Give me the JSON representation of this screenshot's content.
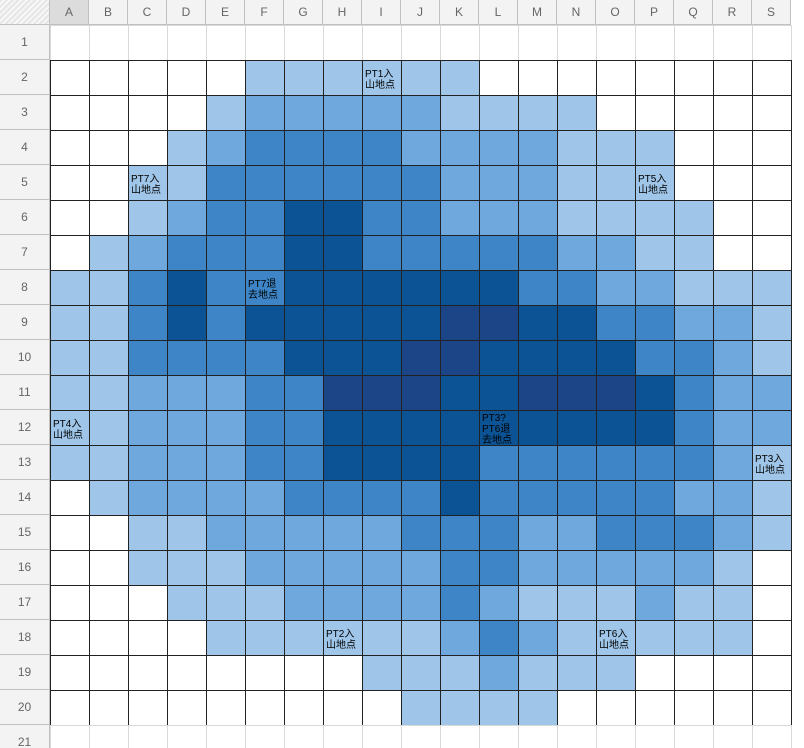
{
  "columns": [
    "A",
    "B",
    "C",
    "D",
    "E",
    "F",
    "G",
    "H",
    "I",
    "J",
    "K",
    "L",
    "M",
    "N",
    "O",
    "P",
    "Q",
    "R",
    "S"
  ],
  "rows": [
    1,
    2,
    3,
    4,
    5,
    6,
    7,
    8,
    9,
    10,
    11,
    12,
    13,
    14,
    15,
    16,
    17,
    18,
    19,
    20,
    21
  ],
  "cells": {
    "I2": "PT1入\n山地点",
    "C5": "PT7入\n山地点",
    "P5": "PT5入\n山地点",
    "F8": "PT7退\n去地点",
    "A12": "PT4入\n山地点",
    "L12": "PT3?\nPT6退\n去地点",
    "S13": "PT3入\n山地点",
    "H18": "PT2入\n山地点",
    "O18": "PT6入\n山地点"
  }
}
